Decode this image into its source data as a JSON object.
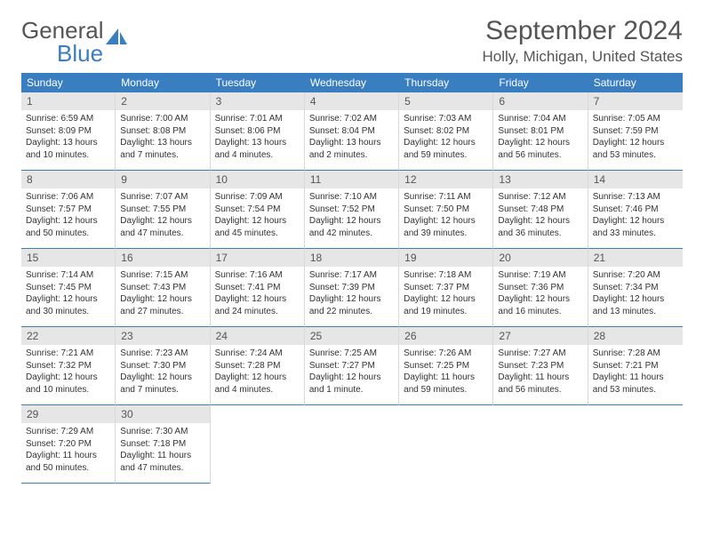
{
  "logo": {
    "text1": "General",
    "text2": "Blue"
  },
  "title": "September 2024",
  "location": "Holly, Michigan, United States",
  "colors": {
    "header_bg": "#3a7ec2",
    "header_text": "#ffffff",
    "daynum_bg": "#e6e6e6",
    "border": "#3a7ec2",
    "cell_border": "#d9d9d9",
    "text": "#333333"
  },
  "weekdays": [
    "Sunday",
    "Monday",
    "Tuesday",
    "Wednesday",
    "Thursday",
    "Friday",
    "Saturday"
  ],
  "days": [
    {
      "n": "1",
      "sunrise": "6:59 AM",
      "sunset": "8:09 PM",
      "daylight": "13 hours and 10 minutes."
    },
    {
      "n": "2",
      "sunrise": "7:00 AM",
      "sunset": "8:08 PM",
      "daylight": "13 hours and 7 minutes."
    },
    {
      "n": "3",
      "sunrise": "7:01 AM",
      "sunset": "8:06 PM",
      "daylight": "13 hours and 4 minutes."
    },
    {
      "n": "4",
      "sunrise": "7:02 AM",
      "sunset": "8:04 PM",
      "daylight": "13 hours and 2 minutes."
    },
    {
      "n": "5",
      "sunrise": "7:03 AM",
      "sunset": "8:02 PM",
      "daylight": "12 hours and 59 minutes."
    },
    {
      "n": "6",
      "sunrise": "7:04 AM",
      "sunset": "8:01 PM",
      "daylight": "12 hours and 56 minutes."
    },
    {
      "n": "7",
      "sunrise": "7:05 AM",
      "sunset": "7:59 PM",
      "daylight": "12 hours and 53 minutes."
    },
    {
      "n": "8",
      "sunrise": "7:06 AM",
      "sunset": "7:57 PM",
      "daylight": "12 hours and 50 minutes."
    },
    {
      "n": "9",
      "sunrise": "7:07 AM",
      "sunset": "7:55 PM",
      "daylight": "12 hours and 47 minutes."
    },
    {
      "n": "10",
      "sunrise": "7:09 AM",
      "sunset": "7:54 PM",
      "daylight": "12 hours and 45 minutes."
    },
    {
      "n": "11",
      "sunrise": "7:10 AM",
      "sunset": "7:52 PM",
      "daylight": "12 hours and 42 minutes."
    },
    {
      "n": "12",
      "sunrise": "7:11 AM",
      "sunset": "7:50 PM",
      "daylight": "12 hours and 39 minutes."
    },
    {
      "n": "13",
      "sunrise": "7:12 AM",
      "sunset": "7:48 PM",
      "daylight": "12 hours and 36 minutes."
    },
    {
      "n": "14",
      "sunrise": "7:13 AM",
      "sunset": "7:46 PM",
      "daylight": "12 hours and 33 minutes."
    },
    {
      "n": "15",
      "sunrise": "7:14 AM",
      "sunset": "7:45 PM",
      "daylight": "12 hours and 30 minutes."
    },
    {
      "n": "16",
      "sunrise": "7:15 AM",
      "sunset": "7:43 PM",
      "daylight": "12 hours and 27 minutes."
    },
    {
      "n": "17",
      "sunrise": "7:16 AM",
      "sunset": "7:41 PM",
      "daylight": "12 hours and 24 minutes."
    },
    {
      "n": "18",
      "sunrise": "7:17 AM",
      "sunset": "7:39 PM",
      "daylight": "12 hours and 22 minutes."
    },
    {
      "n": "19",
      "sunrise": "7:18 AM",
      "sunset": "7:37 PM",
      "daylight": "12 hours and 19 minutes."
    },
    {
      "n": "20",
      "sunrise": "7:19 AM",
      "sunset": "7:36 PM",
      "daylight": "12 hours and 16 minutes."
    },
    {
      "n": "21",
      "sunrise": "7:20 AM",
      "sunset": "7:34 PM",
      "daylight": "12 hours and 13 minutes."
    },
    {
      "n": "22",
      "sunrise": "7:21 AM",
      "sunset": "7:32 PM",
      "daylight": "12 hours and 10 minutes."
    },
    {
      "n": "23",
      "sunrise": "7:23 AM",
      "sunset": "7:30 PM",
      "daylight": "12 hours and 7 minutes."
    },
    {
      "n": "24",
      "sunrise": "7:24 AM",
      "sunset": "7:28 PM",
      "daylight": "12 hours and 4 minutes."
    },
    {
      "n": "25",
      "sunrise": "7:25 AM",
      "sunset": "7:27 PM",
      "daylight": "12 hours and 1 minute."
    },
    {
      "n": "26",
      "sunrise": "7:26 AM",
      "sunset": "7:25 PM",
      "daylight": "11 hours and 59 minutes."
    },
    {
      "n": "27",
      "sunrise": "7:27 AM",
      "sunset": "7:23 PM",
      "daylight": "11 hours and 56 minutes."
    },
    {
      "n": "28",
      "sunrise": "7:28 AM",
      "sunset": "7:21 PM",
      "daylight": "11 hours and 53 minutes."
    },
    {
      "n": "29",
      "sunrise": "7:29 AM",
      "sunset": "7:20 PM",
      "daylight": "11 hours and 50 minutes."
    },
    {
      "n": "30",
      "sunrise": "7:30 AM",
      "sunset": "7:18 PM",
      "daylight": "11 hours and 47 minutes."
    }
  ]
}
